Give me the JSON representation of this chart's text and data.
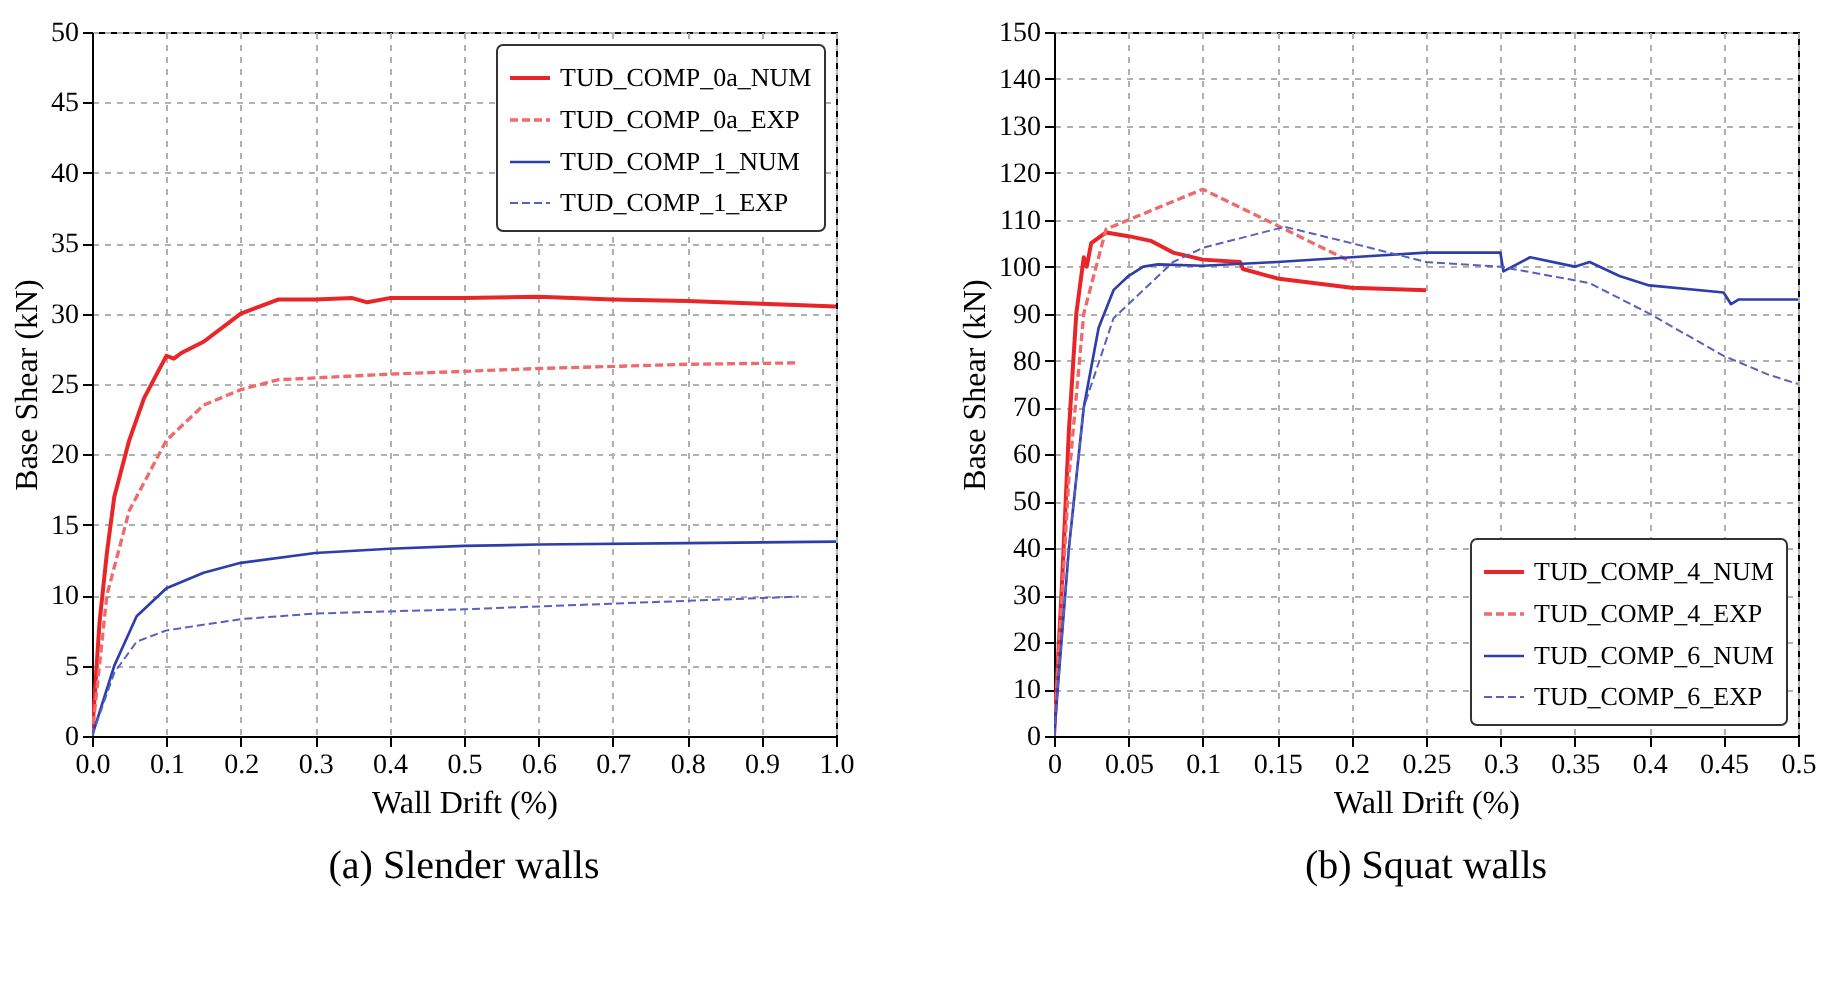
{
  "chart_data": [
    {
      "type": "line",
      "xlabel": "Wall Drift (%)",
      "ylabel": "Base Shear (kN)",
      "annotations": [
        "(a)  Slender walls"
      ],
      "xlim": [
        0,
        1
      ],
      "ylim": [
        0,
        50
      ],
      "xticks": [
        {
          "value": 0,
          "label": "0.0"
        },
        0.1,
        0.2,
        0.3,
        0.4,
        0.5,
        0.6,
        0.7,
        0.8,
        0.9,
        {
          "value": 1,
          "label": "1.0"
        }
      ],
      "yticks": [
        0,
        5,
        10,
        15,
        20,
        25,
        30,
        35,
        40,
        45,
        50
      ],
      "grid": true,
      "legend": "top right",
      "series": [
        {
          "name": "TUD_COMP_0a_NUM",
          "color": "#e8262a",
          "line_style": "solid",
          "x": [
            0,
            0.01,
            0.02,
            0.03,
            0.05,
            0.07,
            0.09,
            0.1,
            0.11,
            0.12,
            0.15,
            0.2,
            0.25,
            0.3,
            0.35,
            0.37,
            0.4,
            0.5,
            0.6,
            0.7,
            0.8,
            0.9,
            1.0
          ],
          "values": [
            0,
            8,
            13,
            17,
            21,
            24,
            26,
            27,
            26.8,
            27.2,
            28,
            30,
            31,
            31,
            31.1,
            30.8,
            31.1,
            31.1,
            31.2,
            31,
            30.9,
            30.7,
            30.5
          ]
        },
        {
          "name": "TUD_COMP_0a_EXP",
          "color": "#ef6a6a",
          "line_style": "dashed",
          "x": [
            0,
            0.02,
            0.05,
            0.1,
            0.15,
            0.2,
            0.25,
            0.4,
            0.6,
            0.8,
            0.95
          ],
          "values": [
            0,
            10,
            16,
            21,
            23.5,
            24.6,
            25.3,
            25.7,
            26.1,
            26.4,
            26.5
          ]
        },
        {
          "name": "TUD_COMP_1_NUM",
          "color": "#2d3eaa",
          "line_style": "solid",
          "x": [
            0,
            0.03,
            0.06,
            0.1,
            0.15,
            0.2,
            0.3,
            0.4,
            0.5,
            0.6,
            0.8,
            1.0
          ],
          "values": [
            0,
            5,
            8.5,
            10.5,
            11.6,
            12.3,
            13,
            13.3,
            13.5,
            13.6,
            13.7,
            13.8
          ]
        },
        {
          "name": "TUD_COMP_1_EXP",
          "color": "#5560c0",
          "line_style": "dashed",
          "x": [
            0,
            0.03,
            0.06,
            0.1,
            0.2,
            0.3,
            0.5,
            0.7,
            0.95
          ],
          "values": [
            0,
            4.5,
            6.7,
            7.5,
            8.3,
            8.7,
            9,
            9.4,
            9.9
          ]
        }
      ]
    },
    {
      "type": "line",
      "xlabel": "Wall Drift (%)",
      "ylabel": "Base Shear (kN)",
      "annotations": [
        "(b)  Squat walls"
      ],
      "xlim": [
        0,
        0.5
      ],
      "ylim": [
        0,
        150
      ],
      "xticks": [
        0,
        0.05,
        0.1,
        0.15,
        0.2,
        0.25,
        0.3,
        0.35,
        0.4,
        0.45,
        0.5
      ],
      "yticks": [
        0,
        10,
        20,
        30,
        40,
        50,
        60,
        70,
        80,
        90,
        100,
        110,
        120,
        130,
        140,
        150
      ],
      "grid": true,
      "legend": "bottom right",
      "series": [
        {
          "name": "TUD_COMP_4_NUM",
          "color": "#e8262a",
          "line_style": "solid",
          "x": [
            0,
            0.005,
            0.01,
            0.015,
            0.02,
            0.022,
            0.025,
            0.035,
            0.05,
            0.065,
            0.08,
            0.1,
            0.125,
            0.127,
            0.15,
            0.2,
            0.25
          ],
          "values": [
            0,
            30,
            65,
            90,
            102,
            100,
            105,
            107.3,
            106.5,
            105.5,
            103,
            101.5,
            101,
            99.5,
            97.5,
            95.5,
            95
          ]
        },
        {
          "name": "TUD_COMP_4_EXP",
          "color": "#ef6a6a",
          "line_style": "dashed",
          "x": [
            0,
            0.01,
            0.02,
            0.035,
            0.1,
            0.2
          ],
          "values": [
            0,
            55,
            90,
            108,
            116.5,
            101
          ]
        },
        {
          "name": "TUD_COMP_6_NUM",
          "color": "#2d3eaa",
          "line_style": "solid",
          "x": [
            0,
            0.01,
            0.02,
            0.03,
            0.04,
            0.05,
            0.06,
            0.07,
            0.1,
            0.15,
            0.2,
            0.25,
            0.3,
            0.302,
            0.32,
            0.35,
            0.36,
            0.38,
            0.4,
            0.45,
            0.455,
            0.46,
            0.5
          ],
          "values": [
            0,
            40,
            70,
            87,
            95,
            98,
            100,
            100.5,
            100.2,
            101,
            102,
            103,
            103,
            99,
            102,
            100,
            101,
            98,
            96,
            94.5,
            92,
            93,
            93
          ]
        },
        {
          "name": "TUD_COMP_6_EXP",
          "color": "#5560c0",
          "line_style": "dashed",
          "x": [
            0,
            0.01,
            0.02,
            0.04,
            0.08,
            0.1,
            0.155,
            0.2,
            0.25,
            0.3,
            0.36,
            0.4,
            0.45,
            0.48,
            0.5
          ],
          "values": [
            0,
            40,
            70,
            89,
            101,
            104,
            108.5,
            105,
            101,
            100,
            96.5,
            90,
            81,
            77,
            75
          ]
        }
      ]
    }
  ]
}
